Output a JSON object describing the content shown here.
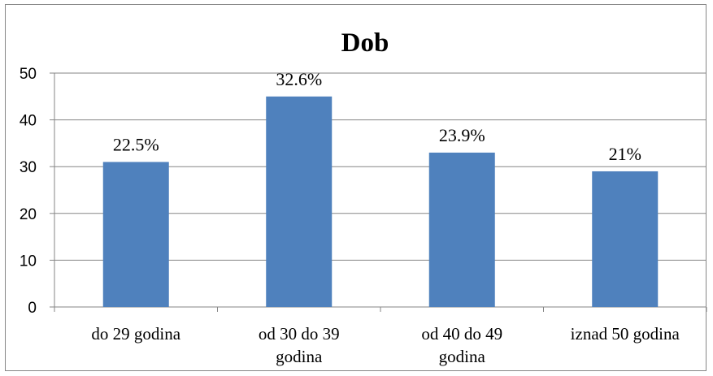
{
  "chart_data": {
    "type": "bar",
    "title": "Dob",
    "categories": [
      "do 29 godina",
      "od 30 do 39 godina",
      "od 40 do 49 godina",
      "iznad 50 godina"
    ],
    "category_lines": [
      [
        "do 29 godina"
      ],
      [
        "od 30 do 39",
        "godina"
      ],
      [
        "od 40 do 49",
        "godina"
      ],
      [
        "iznad 50 godina"
      ]
    ],
    "values": [
      31,
      45,
      33,
      29
    ],
    "data_labels": [
      "22.5%",
      "32.6%",
      "23.9%",
      "21%"
    ],
    "ylim": [
      0,
      50
    ],
    "yticks": [
      0,
      10,
      20,
      30,
      40,
      50
    ],
    "grid": true,
    "legend": "none",
    "colors": {
      "bar": "#4F81BD",
      "grid": "#868686",
      "axis": "#868686",
      "text": "#000000"
    }
  }
}
